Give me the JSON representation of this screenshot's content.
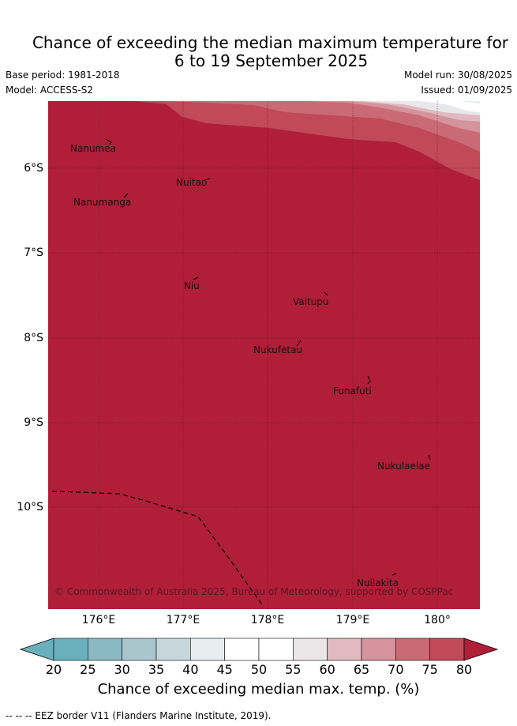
{
  "title_line1": "Chance of exceeding the median maximum temperature for",
  "title_line2": "6 to 19 September 2025",
  "base_period": "Base period: 1981-2018",
  "model": "Model: ACCESS-S2",
  "model_run": "Model run: 30/08/2025",
  "issued": "Issued: 01/09/2025",
  "lat_labels": [
    "6°S",
    "7°S",
    "8°S",
    "9°S",
    "10°S"
  ],
  "lon_labels": [
    "176°E",
    "177°E",
    "178°E",
    "179°E",
    "180°"
  ],
  "islands": [
    "Nanumea",
    "Nuitao",
    "Nanumanga",
    "Niu",
    "Vaitupu",
    "Nukufetau",
    "Funafuti",
    "Nukulaelae",
    "Nuilakita"
  ],
  "copyright": "© Commonwealth of Australia 2025, Bureau of Meteorology, supported by COSPPac",
  "colorbar": {
    "ticks": [
      "20",
      "25",
      "30",
      "35",
      "40",
      "45",
      "50",
      "55",
      "60",
      "65",
      "70",
      "75",
      "80"
    ],
    "colors": [
      "#6ab0bc",
      "#8ab8c3",
      "#a8c6cb",
      "#c7d6db",
      "#e8eef0",
      "#ffffff",
      "#ffffff",
      "#ebe6e8",
      "#e1b9c0",
      "#d5939b",
      "#ca6a75",
      "#c04a57",
      "#b01e38"
    ],
    "label": "Chance of exceeding median max. temp. (%)"
  },
  "footnote": "--  --  -- EEZ border V11 (Flanders Marine Institute, 2019).",
  "map_colors": {
    "dominant": "#b01e38",
    "band75": "#c04a57",
    "band70": "#ca6a75",
    "band65": "#e1b9c0",
    "band55": "#e8e8ea",
    "band45": "#ffffff"
  }
}
